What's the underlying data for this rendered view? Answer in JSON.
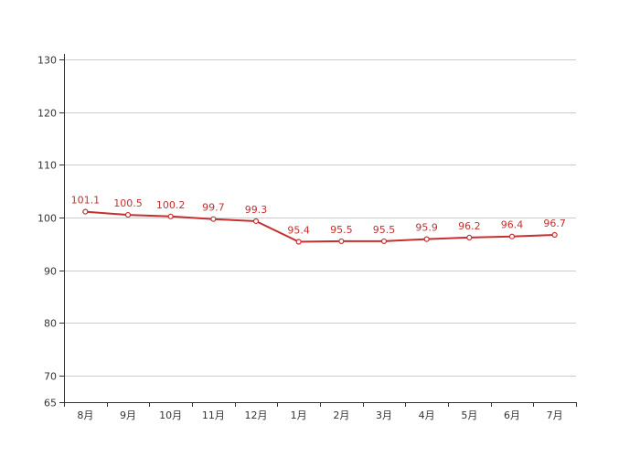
{
  "chart_data": {
    "type": "line",
    "categories": [
      "8月",
      "9月",
      "10月",
      "11月",
      "12月",
      "1月",
      "2月",
      "3月",
      "4月",
      "5月",
      "6月",
      "7月"
    ],
    "series": [
      {
        "values": [
          101.1,
          100.5,
          100.2,
          99.7,
          99.3,
          95.4,
          95.5,
          95.5,
          95.9,
          96.2,
          96.4,
          96.7
        ]
      }
    ],
    "ylim": [
      65,
      131
    ],
    "yticks": [
      65,
      70,
      80,
      90,
      100,
      110,
      120,
      130
    ],
    "gridlines": [
      70,
      80,
      90,
      100,
      110,
      120,
      130
    ],
    "grid": true,
    "show_data_labels": true,
    "title": "",
    "xlabel": "",
    "ylabel": "",
    "colors": {
      "line": "#c62f2f",
      "marker_fill": "#ffffff",
      "grid": "#cccccc",
      "axis": "#333333",
      "label": "#c62f2f"
    }
  }
}
